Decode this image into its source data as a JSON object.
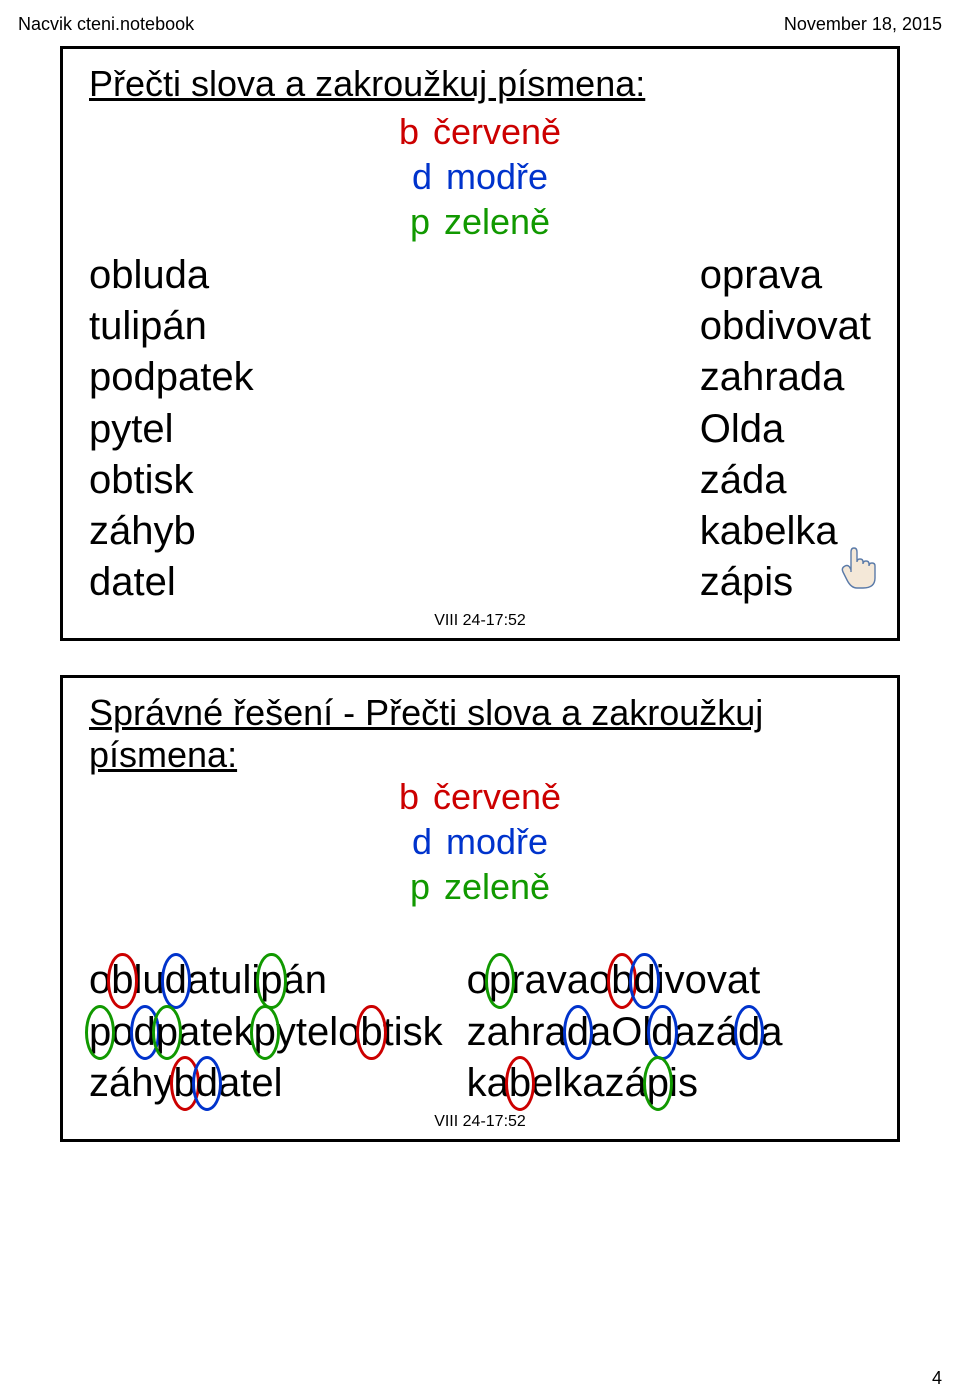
{
  "header": {
    "left": "Nacvik cteni.notebook",
    "right": "November 18, 2015"
  },
  "colors": {
    "red": "#cc0000",
    "blue": "#0033cc",
    "green": "#119900",
    "black": "#000000"
  },
  "legend": {
    "rows": [
      {
        "letter": "b",
        "label": "červeně",
        "color": "red"
      },
      {
        "letter": "d",
        "label": "modře",
        "color": "blue"
      },
      {
        "letter": "p",
        "label": "zeleně",
        "color": "green"
      }
    ]
  },
  "panel1": {
    "title": "Přečti slova a zakroužkuj písmena:",
    "left": [
      "obluda",
      "tulipán",
      "podpatek",
      "pytel",
      "obtisk",
      "záhyb",
      "datel"
    ],
    "right": [
      "oprava",
      "obdivovat",
      "zahrada",
      "Olda",
      "záda",
      "kabelka",
      "zápis"
    ],
    "timestamp": "VIII 24-17:52"
  },
  "panel2": {
    "title": "Správné řešení - Přečti slova a zakroužkuj písmena:",
    "left": [
      [
        [
          "o",
          ""
        ],
        [
          "b",
          "red"
        ],
        [
          "l",
          ""
        ],
        [
          "u",
          ""
        ],
        [
          "d",
          "blue"
        ],
        [
          "a",
          ""
        ]
      ],
      [
        [
          "t",
          ""
        ],
        [
          "u",
          ""
        ],
        [
          "l",
          ""
        ],
        [
          "i",
          ""
        ],
        [
          "p",
          "green"
        ],
        [
          "á",
          ""
        ],
        [
          "n",
          ""
        ]
      ],
      [
        [
          "p",
          "green"
        ],
        [
          "o",
          ""
        ],
        [
          "d",
          "blue"
        ],
        [
          "p",
          "green"
        ],
        [
          "a",
          ""
        ],
        [
          "t",
          ""
        ],
        [
          "e",
          ""
        ],
        [
          "k",
          ""
        ]
      ],
      [
        [
          "p",
          "green"
        ],
        [
          "y",
          ""
        ],
        [
          "t",
          ""
        ],
        [
          "e",
          ""
        ],
        [
          "l",
          ""
        ]
      ],
      [
        [
          "o",
          ""
        ],
        [
          "b",
          "red"
        ],
        [
          "t",
          ""
        ],
        [
          "i",
          ""
        ],
        [
          "s",
          ""
        ],
        [
          "k",
          ""
        ]
      ],
      [
        [
          "z",
          ""
        ],
        [
          "á",
          ""
        ],
        [
          "h",
          ""
        ],
        [
          "y",
          ""
        ],
        [
          "b",
          "red"
        ]
      ],
      [
        [
          "d",
          "blue"
        ],
        [
          "a",
          ""
        ],
        [
          "t",
          ""
        ],
        [
          "e",
          ""
        ],
        [
          "l",
          ""
        ]
      ]
    ],
    "right": [
      [
        [
          "o",
          ""
        ],
        [
          "p",
          "green"
        ],
        [
          "r",
          ""
        ],
        [
          "a",
          ""
        ],
        [
          "v",
          ""
        ],
        [
          "a",
          ""
        ]
      ],
      [
        [
          "o",
          ""
        ],
        [
          "b",
          "red"
        ],
        [
          "d",
          "blue"
        ],
        [
          "i",
          ""
        ],
        [
          "v",
          ""
        ],
        [
          "o",
          ""
        ],
        [
          "v",
          ""
        ],
        [
          "a",
          ""
        ],
        [
          "t",
          ""
        ]
      ],
      [
        [
          "z",
          ""
        ],
        [
          "a",
          ""
        ],
        [
          "h",
          ""
        ],
        [
          "r",
          ""
        ],
        [
          "a",
          ""
        ],
        [
          "d",
          "blue"
        ],
        [
          "a",
          ""
        ]
      ],
      [
        [
          "O",
          ""
        ],
        [
          "l",
          ""
        ],
        [
          "d",
          "blue"
        ],
        [
          "a",
          ""
        ]
      ],
      [
        [
          "z",
          ""
        ],
        [
          "á",
          ""
        ],
        [
          "d",
          "blue"
        ],
        [
          "a",
          ""
        ]
      ],
      [
        [
          "k",
          ""
        ],
        [
          "a",
          ""
        ],
        [
          "b",
          "red"
        ],
        [
          "e",
          ""
        ],
        [
          "l",
          ""
        ],
        [
          "k",
          ""
        ],
        [
          "a",
          ""
        ]
      ],
      [
        [
          "z",
          ""
        ],
        [
          "á",
          ""
        ],
        [
          "p",
          "green"
        ],
        [
          "i",
          ""
        ],
        [
          "s",
          ""
        ]
      ]
    ],
    "timestamp": "VIII 24-17:52"
  },
  "page_number": "4"
}
